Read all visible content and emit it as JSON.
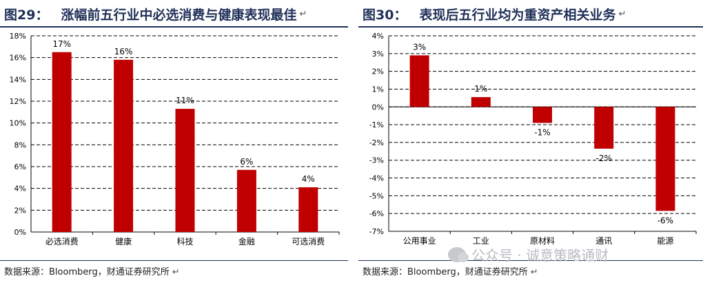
{
  "left": {
    "figure_number": "图29：",
    "title": "涨幅前五行业中必选消费与健康表现最佳",
    "source": "数据来源：Bloomberg，财通证券研究所"
  },
  "right": {
    "figure_number": "图30：",
    "title": "表现后五行业均为重资产相关业务",
    "source": "数据来源：Bloomberg，财通证券研究所"
  },
  "return_mark": "↵",
  "watermark": "公众号 · 诚意策略通财",
  "colors": {
    "bar": "#c00000",
    "title": "#1f2f57",
    "grid": "#000000"
  },
  "chart_data": [
    {
      "type": "bar",
      "categories": [
        "必选消费",
        "健康",
        "科技",
        "金融",
        "可选消费"
      ],
      "values": [
        16.5,
        15.8,
        11.3,
        5.7,
        4.1
      ],
      "data_labels": [
        "17%",
        "16%",
        "11%",
        "6%",
        "4%"
      ],
      "ylim": [
        0,
        18
      ],
      "yticks": [
        0,
        2,
        4,
        6,
        8,
        10,
        12,
        14,
        16,
        18
      ],
      "ytick_format": "%",
      "grid": "dashed horizontal",
      "xlabel": "",
      "ylabel": ""
    },
    {
      "type": "bar",
      "categories": [
        "公用事业",
        "工业",
        "原材料",
        "通讯",
        "能源"
      ],
      "values": [
        2.9,
        0.55,
        -0.9,
        -2.35,
        -5.85
      ],
      "data_labels": [
        "3%",
        "1%",
        "-1%",
        "-2%",
        "-6%"
      ],
      "ylim": [
        -7,
        4
      ],
      "yticks": [
        -7,
        -6,
        -5,
        -4,
        -3,
        -2,
        -1,
        0,
        1,
        2,
        3,
        4
      ],
      "ytick_format": "%",
      "grid": "dashed horizontal",
      "xlabel": "",
      "ylabel": ""
    }
  ]
}
